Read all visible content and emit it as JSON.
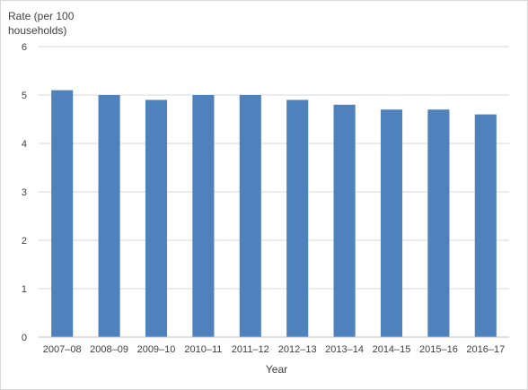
{
  "chart_data": {
    "type": "bar",
    "title": "",
    "ylabel": "Rate (per 100 households)",
    "ylabel_lines": [
      "Rate (per 100",
      "households)"
    ],
    "xlabel": "Year",
    "categories": [
      "2007–08",
      "2008–09",
      "2009–10",
      "2010–11",
      "2011–12",
      "2012–13",
      "2013–14",
      "2014–15",
      "2015–16",
      "2016–17"
    ],
    "values": [
      5.1,
      5.0,
      4.9,
      5.0,
      5.0,
      4.9,
      4.8,
      4.7,
      4.7,
      4.6
    ],
    "ylim": [
      0,
      6
    ],
    "yticks": [
      "0",
      "1",
      "2",
      "3",
      "4",
      "5",
      "6"
    ],
    "grid": true,
    "legend": "none",
    "colors": {
      "bar": "#4f81bd",
      "grid": "#d9d9d9",
      "axis": "#bfbfbf"
    }
  }
}
